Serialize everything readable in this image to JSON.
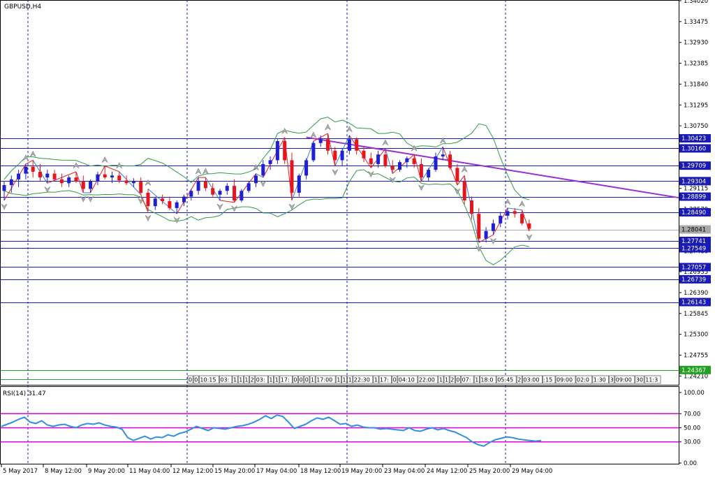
{
  "window": {
    "symbol_label": "GBPUSD,H4",
    "rsi_label": "RSI(14) 31.47"
  },
  "colors": {
    "bull": "#1f1fd6",
    "bear": "#e8141c",
    "level": "#1a1ab4",
    "rsi": "#2f8fe0",
    "rsi_level": "#e000e0",
    "trend": "#9a30d0",
    "bands": "#2e9b4a",
    "zigzag_red": "#e02020",
    "zigzag_blue": "#3a7bd5",
    "current": "#a8a8a8",
    "bid_box": "#22a022",
    "ask_box": "#1a1ab4"
  },
  "price_axis": {
    "ticks": [
      "1.34020",
      "1.33475",
      "1.32930",
      "1.32385",
      "1.31840",
      "1.31295",
      "1.30750",
      "1.30205",
      "1.29660",
      "1.29115",
      "1.28570",
      "1.28025",
      "1.27480",
      "1.26935",
      "1.26390",
      "1.25845",
      "1.25300",
      "1.24755",
      "1.24210"
    ],
    "range": [
      1.2398,
      1.3402
    ]
  },
  "levels": [
    {
      "price": 1.30423,
      "label": "1.30423"
    },
    {
      "price": 1.3016,
      "label": "1.30160"
    },
    {
      "price": 1.29709,
      "label": "1.29709"
    },
    {
      "price": 1.29304,
      "label": "1.29304"
    },
    {
      "price": 1.28899,
      "label": "1.28899"
    },
    {
      "price": 1.2849,
      "label": "1.28490"
    },
    {
      "price": 1.27741,
      "label": "1.27741"
    },
    {
      "price": 1.27549,
      "label": "1.27549"
    },
    {
      "price": 1.27057,
      "label": "1.27057"
    },
    {
      "price": 1.26739,
      "label": "1.26739"
    },
    {
      "price": 1.26143,
      "label": "1.26143"
    }
  ],
  "current_price": {
    "price": 1.28041,
    "label": "1.28041"
  },
  "bid_marker": {
    "price": 1.24367,
    "label": "1.24367"
  },
  "trendline": {
    "from": [
      42,
      1.3045
    ],
    "to": [
      83,
      1.292
    ]
  },
  "candles": [
    [
      1.2905,
      1.293,
      1.288,
      1.292
    ],
    [
      1.292,
      1.2945,
      1.29,
      1.2935
    ],
    [
      1.2935,
      1.296,
      1.2915,
      1.295
    ],
    [
      1.295,
      1.2975,
      1.2935,
      1.2968
    ],
    [
      1.2968,
      1.2985,
      1.294,
      1.2955
    ],
    [
      1.2955,
      1.2975,
      1.293,
      1.294
    ],
    [
      1.294,
      1.296,
      1.2925,
      1.295
    ],
    [
      1.295,
      1.296,
      1.293,
      1.2935
    ],
    [
      1.2935,
      1.295,
      1.2915,
      1.2925
    ],
    [
      1.2925,
      1.2945,
      1.2915,
      1.294
    ],
    [
      1.294,
      1.2955,
      1.2925,
      1.293
    ],
    [
      1.293,
      1.2945,
      1.29,
      1.291
    ],
    [
      1.291,
      1.2935,
      1.29,
      1.293
    ],
    [
      1.293,
      1.2955,
      1.292,
      1.2948
    ],
    [
      1.2948,
      1.297,
      1.2935,
      1.294
    ],
    [
      1.294,
      1.2955,
      1.2925,
      1.2945
    ],
    [
      1.2945,
      1.2955,
      1.2925,
      1.2932
    ],
    [
      1.2932,
      1.2945,
      1.292,
      1.2925
    ],
    [
      1.2925,
      1.2938,
      1.2915,
      1.293
    ],
    [
      1.293,
      1.294,
      1.2895,
      1.29
    ],
    [
      1.29,
      1.291,
      1.285,
      1.2865
    ],
    [
      1.2865,
      1.289,
      1.2855,
      1.2885
    ],
    [
      1.2885,
      1.2895,
      1.287,
      1.2878
    ],
    [
      1.2878,
      1.289,
      1.2855,
      1.286
    ],
    [
      1.286,
      1.288,
      1.2845,
      1.2875
    ],
    [
      1.2875,
      1.2895,
      1.2865,
      1.289
    ],
    [
      1.289,
      1.291,
      1.288,
      1.2905
    ],
    [
      1.2905,
      1.294,
      1.2895,
      1.293
    ],
    [
      1.293,
      1.294,
      1.2905,
      1.2912
    ],
    [
      1.2912,
      1.2925,
      1.289,
      1.2895
    ],
    [
      1.2895,
      1.291,
      1.288,
      1.2905
    ],
    [
      1.2905,
      1.2925,
      1.2895,
      1.2918
    ],
    [
      1.2918,
      1.2935,
      1.2875,
      1.288
    ],
    [
      1.288,
      1.291,
      1.2875,
      1.2905
    ],
    [
      1.2905,
      1.293,
      1.29,
      1.2925
    ],
    [
      1.2925,
      1.295,
      1.2915,
      1.2945
    ],
    [
      1.2945,
      1.2985,
      1.294,
      1.2975
    ],
    [
      1.2975,
      1.2995,
      1.296,
      1.2985
    ],
    [
      1.2985,
      1.304,
      1.2975,
      1.3035
    ],
    [
      1.3035,
      1.3045,
      1.2975,
      1.2985
    ],
    [
      1.2985,
      1.3005,
      1.288,
      1.29
    ],
    [
      1.29,
      1.295,
      1.289,
      1.2945
    ],
    [
      1.2945,
      1.299,
      1.2935,
      1.2985
    ],
    [
      1.2985,
      1.3035,
      1.298,
      1.303
    ],
    [
      1.303,
      1.305,
      1.302,
      1.304
    ],
    [
      1.304,
      1.3055,
      1.3,
      1.301
    ],
    [
      1.301,
      1.302,
      1.297,
      1.2985
    ],
    [
      1.2985,
      1.3015,
      1.297,
      1.301
    ],
    [
      1.301,
      1.305,
      1.3,
      1.304
    ],
    [
      1.304,
      1.3045,
      1.3,
      1.301
    ],
    [
      1.301,
      1.302,
      1.298,
      1.299
    ],
    [
      1.299,
      1.3005,
      1.2965,
      1.2975
    ],
    [
      1.2975,
      1.301,
      1.2965,
      1.3
    ],
    [
      1.3,
      1.3015,
      1.2965,
      1.297
    ],
    [
      1.297,
      1.2985,
      1.295,
      1.296
    ],
    [
      1.296,
      1.2985,
      1.2955,
      1.298
    ],
    [
      1.298,
      1.2995,
      1.2965,
      1.299
    ],
    [
      1.299,
      1.3,
      1.2965,
      1.2975
    ],
    [
      1.2975,
      1.299,
      1.293,
      1.294
    ],
    [
      1.294,
      1.2965,
      1.293,
      1.296
    ],
    [
      1.296,
      1.3005,
      1.2955,
      1.2995
    ],
    [
      1.2995,
      1.302,
      1.2985,
      1.3
    ],
    [
      1.3,
      1.301,
      1.296,
      1.2965
    ],
    [
      1.2965,
      1.2975,
      1.292,
      1.293
    ],
    [
      1.293,
      1.2945,
      1.287,
      1.288
    ],
    [
      1.288,
      1.289,
      1.283,
      1.2845
    ],
    [
      1.2845,
      1.286,
      1.277,
      1.278
    ],
    [
      1.278,
      1.281,
      1.277,
      1.28
    ],
    [
      1.28,
      1.283,
      1.279,
      1.282
    ],
    [
      1.282,
      1.285,
      1.281,
      1.284
    ],
    [
      1.284,
      1.286,
      1.283,
      1.2852
    ],
    [
      1.2852,
      1.286,
      1.2835,
      1.2845
    ],
    [
      1.2845,
      1.2855,
      1.2815,
      1.282
    ],
    [
      1.282,
      1.283,
      1.28,
      1.2806
    ]
  ],
  "rsi": {
    "ticks": [
      "100.00",
      "70.00",
      "50.00",
      "30.00",
      "0.00"
    ],
    "levels": [
      70,
      50,
      30
    ],
    "values": [
      52,
      55,
      58,
      62,
      65,
      58,
      56,
      60,
      54,
      52,
      54,
      55,
      52,
      50,
      54,
      56,
      55,
      57,
      54,
      52,
      51,
      48,
      36,
      32,
      35,
      38,
      34,
      37,
      36,
      40,
      38,
      42,
      44,
      48,
      52,
      49,
      46,
      50,
      49,
      48,
      50,
      52,
      53,
      55,
      58,
      62,
      67,
      63,
      68,
      66,
      58,
      49,
      52,
      55,
      60,
      64,
      62,
      65,
      60,
      55,
      56,
      52,
      54,
      51,
      50,
      50,
      48,
      49,
      48,
      47,
      46,
      50,
      46,
      45,
      48,
      50,
      47,
      49,
      46,
      44,
      40,
      36,
      30,
      26,
      24,
      29,
      33,
      35,
      37,
      36,
      34,
      33,
      32,
      31,
      32
    ]
  },
  "time_axis": [
    "5 May 2017",
    "8 May 12:00",
    "9 May 20:00",
    "11 May 04:00",
    "12 May 12:00",
    "15 May 20:00",
    "17 May 04:00",
    "18 May 12:00",
    "19 May 20:00",
    "23 May 04:00",
    "24 May 12:00",
    "25 May 20:00",
    "29 May 04:00"
  ],
  "calendar_labels": [
    "0",
    "0",
    "10:15",
    "03:",
    "1",
    "1",
    "1",
    "2",
    "03:",
    "1",
    "1",
    "17:",
    "0",
    "0",
    "0",
    "1",
    "17:00",
    "1",
    "1",
    "1",
    "22:30",
    "1",
    "17:",
    "0",
    "04:10",
    "22:00",
    "1",
    "1",
    "2",
    "0",
    "07:",
    "1",
    "18:0",
    "05:45",
    "2",
    "03:00",
    ":15",
    "09:00",
    "02:0",
    "1:30",
    "3",
    "09:00",
    "30",
    "11:3",
    "22:30"
  ]
}
